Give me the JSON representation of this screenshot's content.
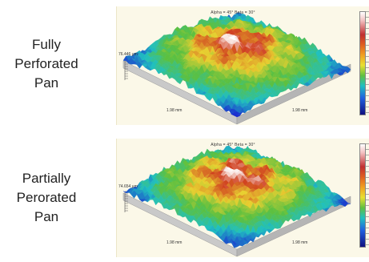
{
  "rows": [
    {
      "label_lines": [
        "Fully",
        "Perforated",
        "Pan"
      ],
      "angles": "Alpha = 45°      Beta = 30°",
      "height": "76.446 μm",
      "x_length": "1.98 mm",
      "y_length": "1.98 mm"
    },
    {
      "label_lines": [
        "Partially",
        "Perorated",
        "Pan"
      ],
      "angles": "Alpha = 45°      Beta = 30°",
      "height": "74.654 μm",
      "x_length": "1.98 mm",
      "y_length": "1.98 mm"
    }
  ],
  "colors": {
    "low": "#1a2bd0",
    "mid_low": "#20c0c0",
    "mid": "#5cc040",
    "mid_high": "#e8d030",
    "high": "#d04020",
    "peak": "#ffffff"
  }
}
